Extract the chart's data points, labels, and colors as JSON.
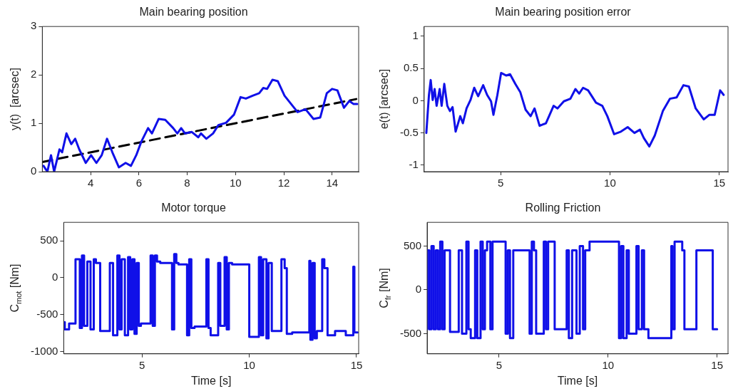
{
  "chart_data": [
    {
      "type": "line",
      "title": "Main bearing position",
      "ylabel": "y(t)  [arcsec]",
      "xlim": [
        2,
        15.1
      ],
      "xticks": [
        4,
        6,
        8,
        10,
        12,
        14
      ],
      "ylim": [
        0,
        3
      ],
      "yticks": [
        0,
        1,
        2,
        3
      ],
      "grid": false,
      "legend": false,
      "series": [
        {
          "color": "#1010e8",
          "line_style": "solid",
          "x": [
            2.05,
            2.21,
            2.36,
            2.49,
            2.6,
            2.71,
            2.82,
            3.0,
            3.2,
            3.36,
            3.53,
            3.8,
            4.02,
            4.24,
            4.46,
            4.68,
            4.9,
            5.17,
            5.45,
            5.67,
            5.89,
            6.1,
            6.38,
            6.54,
            6.82,
            7.09,
            7.42,
            7.59,
            7.75,
            7.91,
            8.19,
            8.46,
            8.57,
            8.79,
            9.07,
            9.29,
            9.61,
            9.94,
            10.21,
            10.43,
            10.71,
            10.98,
            11.15,
            11.31,
            11.53,
            11.75,
            12.03,
            12.3,
            12.57,
            12.9,
            13.23,
            13.51,
            13.78,
            14.0,
            14.22,
            14.49,
            14.71,
            14.88,
            15.04
          ],
          "values": [
            0.12,
            0.0,
            0.34,
            0.0,
            0.23,
            0.46,
            0.4,
            0.79,
            0.57,
            0.68,
            0.46,
            0.18,
            0.34,
            0.18,
            0.34,
            0.68,
            0.4,
            0.09,
            0.18,
            0.12,
            0.34,
            0.62,
            0.9,
            0.79,
            1.09,
            1.07,
            0.9,
            0.79,
            0.9,
            0.79,
            0.82,
            0.71,
            0.79,
            0.68,
            0.79,
            0.96,
            1.01,
            1.18,
            1.54,
            1.51,
            1.57,
            1.62,
            1.73,
            1.71,
            1.9,
            1.87,
            1.57,
            1.4,
            1.23,
            1.29,
            1.09,
            1.12,
            1.62,
            1.71,
            1.68,
            1.32,
            1.46,
            1.4,
            1.4
          ]
        },
        {
          "type": "line",
          "color": "#000000",
          "line_style": "dashed",
          "x": [
            2.0,
            15.0
          ],
          "values": [
            0.2,
            1.5
          ]
        }
      ]
    },
    {
      "type": "line",
      "title": "Main bearing position error",
      "ylabel": "e(t) [arcsec]",
      "xlim": [
        1.5,
        15.4
      ],
      "xticks": [
        5,
        10,
        15
      ],
      "ylim": [
        -1.1,
        1.15
      ],
      "yticks": [
        -1,
        -0.5,
        0,
        0.5,
        1
      ],
      "grid": false,
      "legend": false,
      "series": [
        {
          "color": "#1010e8",
          "line_style": "solid",
          "x": [
            1.6,
            1.72,
            1.8,
            1.89,
            1.98,
            2.07,
            2.21,
            2.3,
            2.42,
            2.56,
            2.68,
            2.8,
            2.94,
            3.15,
            3.27,
            3.44,
            3.62,
            3.79,
            3.97,
            4.2,
            4.38,
            4.56,
            4.67,
            4.85,
            5.02,
            5.26,
            5.43,
            5.67,
            5.9,
            6.14,
            6.37,
            6.55,
            6.78,
            7.07,
            7.42,
            7.6,
            7.89,
            8.19,
            8.42,
            8.59,
            8.77,
            9.0,
            9.36,
            9.65,
            9.88,
            10.19,
            10.5,
            10.81,
            11.12,
            11.37,
            11.55,
            11.8,
            12.05,
            12.42,
            12.74,
            13.05,
            13.36,
            13.61,
            13.92,
            14.29,
            14.54,
            14.79,
            15.04,
            15.2
          ],
          "values": [
            -0.5,
            0.09,
            0.32,
            0.01,
            0.18,
            -0.08,
            0.18,
            -0.08,
            0.26,
            -0.08,
            -0.16,
            -0.1,
            -0.48,
            -0.24,
            -0.35,
            -0.12,
            0.01,
            0.2,
            0.07,
            0.24,
            0.09,
            -0.01,
            -0.22,
            0.09,
            0.43,
            0.39,
            0.41,
            0.26,
            0.13,
            -0.14,
            -0.24,
            -0.12,
            -0.39,
            -0.35,
            -0.08,
            -0.12,
            -0.01,
            0.03,
            0.18,
            0.11,
            0.2,
            0.16,
            -0.03,
            -0.08,
            -0.24,
            -0.52,
            -0.48,
            -0.41,
            -0.5,
            -0.45,
            -0.58,
            -0.71,
            -0.54,
            -0.16,
            0.03,
            0.05,
            0.24,
            0.22,
            -0.12,
            -0.29,
            -0.22,
            -0.22,
            0.16,
            0.09
          ]
        }
      ]
    },
    {
      "type": "step",
      "title": "Motor torque",
      "xlabel": "Time [s]",
      "ylabel": "C$_{mot}$ [Nm]",
      "xlim": [
        1.35,
        15.1
      ],
      "xticks": [
        5,
        10,
        15
      ],
      "ylim": [
        -1030,
        750
      ],
      "yticks": [
        -1000,
        -500,
        0,
        500
      ],
      "grid": false,
      "legend": false,
      "series": [
        {
          "color": "#1010e8",
          "line_style": "solid",
          "x": [
            1.4,
            1.6,
            1.9,
            2.1,
            2.2,
            2.3,
            2.45,
            2.6,
            2.75,
            2.85,
            3.05,
            3.5,
            3.65,
            3.85,
            3.95,
            4.05,
            4.2,
            4.35,
            4.45,
            4.55,
            4.65,
            4.75,
            4.85,
            4.95,
            5.4,
            5.5,
            5.6,
            5.7,
            5.85,
            6.4,
            6.5,
            6.6,
            6.7,
            7.1,
            7.2,
            7.3,
            7.45,
            8.0,
            8.1,
            8.2,
            8.55,
            8.65,
            8.85,
            8.95,
            9.05,
            9.2,
            10.0,
            10.45,
            10.55,
            10.65,
            10.8,
            10.9,
            11.05,
            11.5,
            11.65,
            11.75,
            12.0,
            12.8,
            12.85,
            12.95,
            13.05,
            13.15,
            13.4,
            13.5,
            13.65,
            14.0,
            14.5,
            14.85,
            14.9,
            14.95,
            15.05
          ],
          "values": [
            -600,
            -700,
            -620,
            250,
            -680,
            300,
            -650,
            220,
            -700,
            250,
            200,
            -720,
            200,
            -780,
            300,
            -700,
            250,
            -780,
            280,
            -700,
            250,
            -760,
            200,
            -650,
            -620,
            300,
            -650,
            300,
            220,
            200,
            -700,
            320,
            200,
            180,
            -780,
            250,
            -680,
            -660,
            250,
            -680,
            -780,
            200,
            -650,
            280,
            -700,
            200,
            180,
            -800,
            280,
            -780,
            250,
            -820,
            200,
            -720,
            250,
            130,
            -760,
            -740,
            230,
            -840,
            200,
            -820,
            -720,
            250,
            130,
            -780,
            -720,
            -780,
            150,
            -740,
            -740
          ]
        }
      ]
    },
    {
      "type": "step",
      "title": "Rolling Friction",
      "xlabel": "Time [s]",
      "ylabel": "C$_{fr}$ [Nm]",
      "xlim": [
        1.7,
        15.5
      ],
      "xticks": [
        5,
        10,
        15
      ],
      "ylim": [
        -730,
        770
      ],
      "yticks": [
        -500,
        0,
        500
      ],
      "grid": false,
      "legend": false,
      "series": [
        {
          "color": "#1010e8",
          "line_style": "solid",
          "x": [
            1.7,
            1.8,
            1.9,
            2.0,
            2.1,
            2.2,
            2.3,
            2.4,
            2.5,
            2.55,
            2.75,
            3.15,
            3.3,
            3.5,
            3.6,
            3.7,
            3.9,
            4.0,
            4.15,
            4.25,
            4.35,
            4.45,
            4.6,
            4.7,
            5.3,
            5.4,
            5.5,
            5.65,
            5.75,
            6.4,
            6.5,
            6.6,
            6.7,
            7.05,
            7.15,
            7.25,
            7.55,
            7.65,
            8.1,
            8.2,
            8.35,
            8.55,
            8.7,
            8.85,
            8.95,
            9.15,
            10.5,
            10.6,
            10.7,
            10.85,
            10.95,
            11.3,
            11.4,
            11.55,
            11.65,
            11.85,
            12.9,
            12.95,
            13.05,
            13.4,
            13.5,
            14.05,
            14.8,
            14.9,
            15.0
          ],
          "values": [
            -450,
            450,
            -450,
            500,
            -450,
            450,
            -450,
            550,
            -450,
            450,
            450,
            -480,
            450,
            -500,
            550,
            -450,
            -550,
            450,
            -550,
            550,
            -450,
            450,
            550,
            -450,
            550,
            -500,
            450,
            -550,
            450,
            450,
            -500,
            550,
            450,
            -500,
            550,
            -450,
            550,
            -450,
            -450,
            450,
            -550,
            450,
            -500,
            500,
            -450,
            450,
            550,
            -550,
            500,
            -550,
            450,
            -500,
            500,
            -450,
            450,
            -450,
            -550,
            500,
            -450,
            550,
            450,
            -450,
            450,
            -450,
            -450
          ]
        }
      ]
    }
  ]
}
